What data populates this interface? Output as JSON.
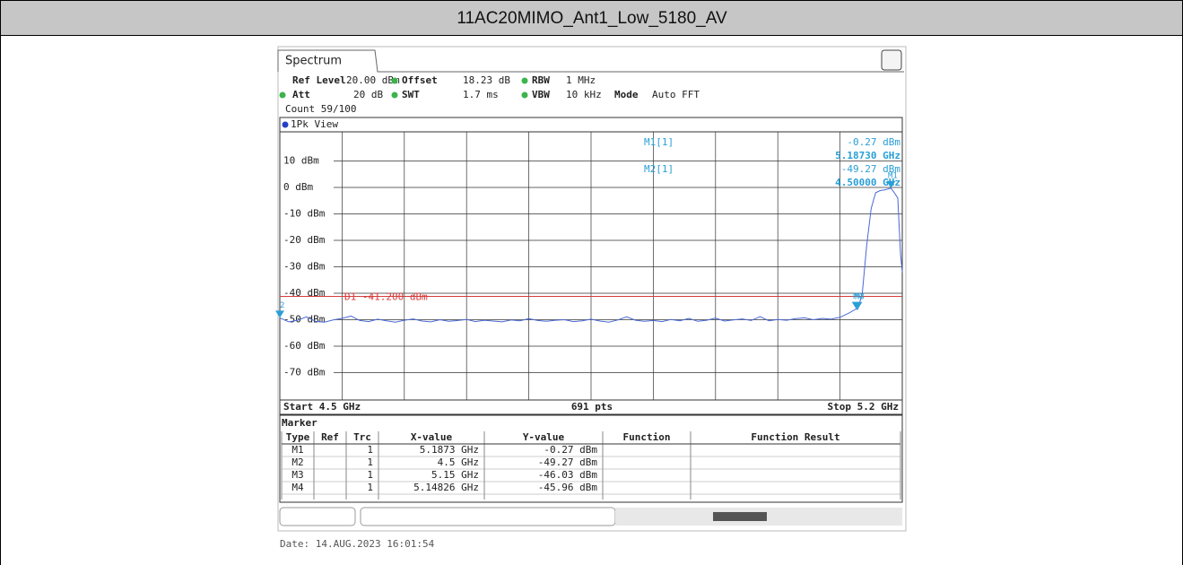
{
  "header": {
    "title": "11AC20MIMO_Ant1_Low_5180_AV"
  },
  "screen": {
    "tab": "Spectrum",
    "settings": [
      [
        {
          "label": "Ref Level",
          "value": "20.00 dBm"
        },
        {
          "label": "Offset",
          "value": "18.23 dB"
        },
        {
          "label": "RBW",
          "value": "1 MHz"
        }
      ],
      [
        {
          "label": "Att",
          "value": "20 dB"
        },
        {
          "label": "SWT",
          "value": "1.7 ms"
        },
        {
          "label": "VBW",
          "value": "10 kHz"
        },
        {
          "label": "Mode",
          "value": "Auto FFT"
        }
      ]
    ],
    "count": "Count 59/100"
  },
  "chart_data": {
    "type": "line",
    "view": "1Pk View",
    "color": "#4a68d6",
    "x": [
      4.5,
      4.51,
      4.52,
      4.53,
      4.54,
      4.55,
      4.56,
      4.57,
      4.58,
      4.59,
      4.6,
      4.61,
      4.62,
      4.63,
      4.64,
      4.65,
      4.66,
      4.67,
      4.68,
      4.69,
      4.7,
      4.71,
      4.72,
      4.73,
      4.74,
      4.75,
      4.76,
      4.77,
      4.78,
      4.79,
      4.8,
      4.81,
      4.82,
      4.83,
      4.84,
      4.85,
      4.86,
      4.87,
      4.88,
      4.89,
      4.9,
      4.91,
      4.92,
      4.93,
      4.94,
      4.95,
      4.96,
      4.97,
      4.98,
      4.99,
      5.0,
      5.01,
      5.02,
      5.03,
      5.04,
      5.05,
      5.06,
      5.07,
      5.08,
      5.09,
      5.1,
      5.11,
      5.12,
      5.13,
      5.14,
      5.148,
      5.15,
      5.155,
      5.16,
      5.165,
      5.17,
      5.175,
      5.18,
      5.1873,
      5.19,
      5.195,
      5.198,
      5.2
    ],
    "values": [
      -49.3,
      -50.8,
      -50.2,
      -48.9,
      -50.6,
      -50.9,
      -50.1,
      -49.5,
      -48.6,
      -50.3,
      -50.7,
      -49.8,
      -50.4,
      -50.9,
      -50.2,
      -49.7,
      -50.5,
      -50.8,
      -50.0,
      -50.6,
      -50.3,
      -49.9,
      -50.7,
      -50.2,
      -50.5,
      -50.8,
      -50.1,
      -50.4,
      -49.6,
      -50.3,
      -50.6,
      -50.2,
      -50.0,
      -50.7,
      -50.4,
      -49.8,
      -50.5,
      -50.9,
      -50.1,
      -48.9,
      -50.2,
      -50.6,
      -50.3,
      -50.7,
      -49.9,
      -50.4,
      -49.5,
      -50.6,
      -50.2,
      -49.4,
      -50.5,
      -50.1,
      -49.7,
      -50.3,
      -48.8,
      -50.4,
      -49.9,
      -50.2,
      -49.6,
      -49.3,
      -50.0,
      -49.5,
      -49.8,
      -49.1,
      -47.5,
      -45.96,
      -46.03,
      -40,
      -22,
      -8,
      -2,
      -1.2,
      -0.9,
      -0.27,
      -1.5,
      -4,
      -25,
      -32
    ],
    "xlim": [
      4.5,
      5.2
    ],
    "ylim": [
      -80,
      20
    ],
    "yticks": [
      {
        "value": 10,
        "label": "10 dBm"
      },
      {
        "value": 0,
        "label": "0 dBm"
      },
      {
        "value": -10,
        "label": "-10 dBm"
      },
      {
        "value": -20,
        "label": "-20 dBm"
      },
      {
        "value": -30,
        "label": "-30 dBm"
      },
      {
        "value": -40,
        "label": "-40 dBm"
      },
      {
        "value": -50,
        "label": "-50 dBm"
      },
      {
        "value": -60,
        "label": "-60 dBm"
      },
      {
        "value": -70,
        "label": "-70 dBm"
      }
    ],
    "display_line": {
      "label": "D1 -41.200 dBm",
      "value": -41.2,
      "color": "#d43c3c"
    },
    "markers": [
      {
        "name": "M1",
        "x": 5.1873,
        "value": -0.27
      },
      {
        "name": "2",
        "x": 4.5,
        "value": -49.27
      },
      {
        "name": "M3",
        "x": 5.15,
        "value": -46.03
      },
      {
        "name": "M4",
        "x": 5.14826,
        "value": -45.96
      }
    ],
    "readouts": [
      {
        "name": "M1[1]",
        "level": "-0.27 dBm",
        "freq": "5.18730 GHz"
      },
      {
        "name": "M2[1]",
        "level": "-49.27 dBm",
        "freq": "4.50000 GHz"
      }
    ],
    "start": "Start 4.5 GHz",
    "points": "691 pts",
    "stop": "Stop 5.2 GHz"
  },
  "marker_table": {
    "title": "Marker",
    "columns": [
      "Type",
      "Ref",
      "Trc",
      "X-value",
      "Y-value",
      "Function",
      "Function Result"
    ],
    "rows": [
      [
        "M1",
        "",
        "1",
        "5.1873 GHz",
        "-0.27 dBm",
        "",
        ""
      ],
      [
        "M2",
        "",
        "1",
        "4.5 GHz",
        "-49.27 dBm",
        "",
        ""
      ],
      [
        "M3",
        "",
        "1",
        "5.15 GHz",
        "-46.03 dBm",
        "",
        ""
      ],
      [
        "M4",
        "",
        "1",
        "5.14826 GHz",
        "-45.96 dBm",
        "",
        ""
      ]
    ]
  },
  "date": "Date: 14.AUG.2023 16:01:54"
}
